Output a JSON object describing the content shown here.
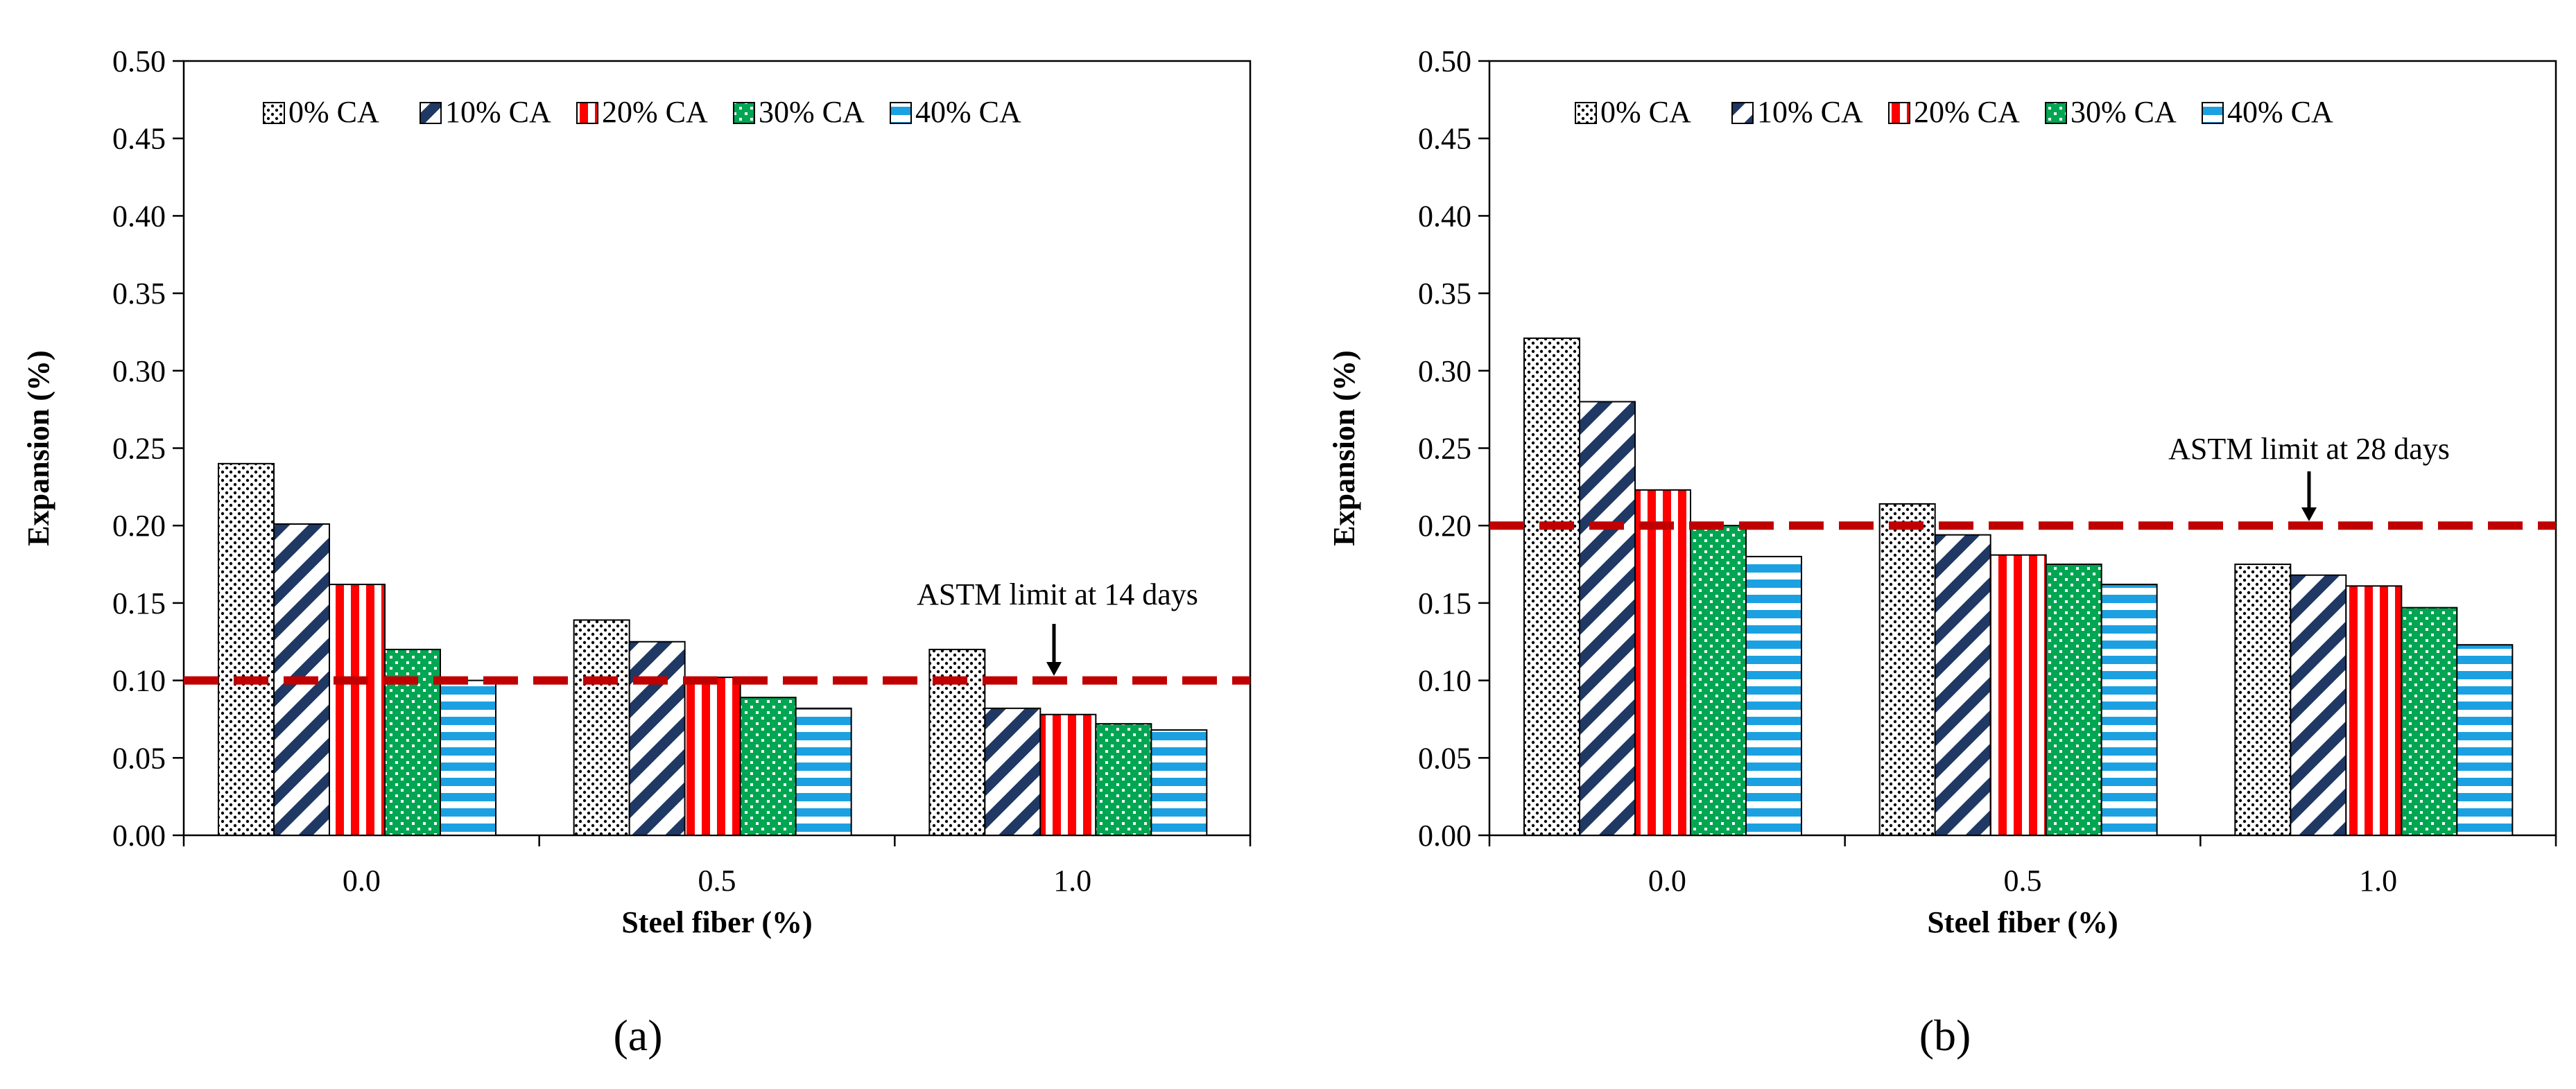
{
  "chart_data": [
    {
      "type": "bar",
      "panel_label": "(a)",
      "categories": [
        "0.0",
        "0.5",
        "1.0"
      ],
      "xlabel": "Steel fiber (%)",
      "ylabel": "Expansion (%)",
      "ylim": [
        0,
        0.5
      ],
      "yticks": [
        "0.00",
        "0.05",
        "0.10",
        "0.15",
        "0.20",
        "0.25",
        "0.30",
        "0.35",
        "0.40",
        "0.45",
        "0.50"
      ],
      "series": [
        {
          "name": "0% CA",
          "values": [
            0.24,
            0.139,
            0.12
          ]
        },
        {
          "name": "10% CA",
          "values": [
            0.201,
            0.125,
            0.082
          ]
        },
        {
          "name": "20% CA",
          "values": [
            0.162,
            0.102,
            0.078
          ]
        },
        {
          "name": "30% CA",
          "values": [
            0.12,
            0.089,
            0.072
          ]
        },
        {
          "name": "40% CA",
          "values": [
            0.1,
            0.082,
            0.068
          ]
        }
      ],
      "limit": {
        "value": 0.1,
        "label": "ASTM limit at 14 days",
        "color": "#c00000"
      },
      "legend_position": "top",
      "grid": false
    },
    {
      "type": "bar",
      "panel_label": "(b)",
      "categories": [
        "0.0",
        "0.5",
        "1.0"
      ],
      "xlabel": "Steel fiber (%)",
      "ylabel": "Expansion (%)",
      "ylim": [
        0,
        0.5
      ],
      "yticks": [
        "0.00",
        "0.05",
        "0.10",
        "0.15",
        "0.20",
        "0.25",
        "0.30",
        "0.35",
        "0.40",
        "0.45",
        "0.50"
      ],
      "series": [
        {
          "name": "0% CA",
          "values": [
            0.321,
            0.214,
            0.175
          ]
        },
        {
          "name": "10% CA",
          "values": [
            0.28,
            0.194,
            0.168
          ]
        },
        {
          "name": "20% CA",
          "values": [
            0.223,
            0.181,
            0.161
          ]
        },
        {
          "name": "30% CA",
          "values": [
            0.2,
            0.175,
            0.147
          ]
        },
        {
          "name": "40% CA",
          "values": [
            0.18,
            0.162,
            0.123
          ]
        }
      ],
      "limit": {
        "value": 0.2,
        "label": "ASTM limit at 28 days",
        "color": "#c00000"
      },
      "legend_position": "top",
      "grid": false
    }
  ],
  "series_colors": {
    "0% CA": "#000000",
    "10% CA": "#1f3864",
    "20% CA": "#ff0000",
    "30% CA": "#00a651",
    "40% CA": "#1ba1e2"
  },
  "series_patterns": {
    "0% CA": "dots-icon",
    "10% CA": "diagonal-stripes-icon",
    "20% CA": "vertical-stripes-icon",
    "30% CA": "checker-icon",
    "40% CA": "horizontal-stripes-icon"
  }
}
